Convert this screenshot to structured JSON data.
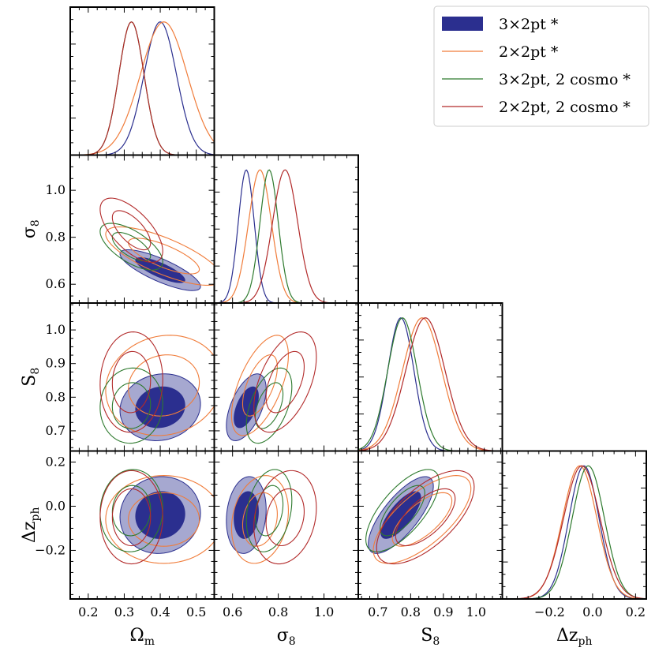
{
  "chart_data": {
    "type": "corner",
    "parameters": [
      {
        "key": "om",
        "symbol": "Ω",
        "subscript": "m",
        "range": [
          0.15,
          0.55
        ],
        "ticks": [
          0.2,
          0.3,
          0.4,
          0.5
        ],
        "tick_labels": [
          "0.2",
          "0.3",
          "0.4",
          "0.5"
        ]
      },
      {
        "key": "s8",
        "symbol": "σ",
        "subscript": "8",
        "range": [
          0.52,
          1.15
        ],
        "ticks": [
          0.6,
          0.8,
          1.0
        ],
        "tick_labels": [
          "0.6",
          "0.8",
          "1.0"
        ]
      },
      {
        "key": "S8",
        "symbol": "S",
        "subscript": "8",
        "range": [
          0.64,
          1.08
        ],
        "ticks": [
          0.7,
          0.8,
          0.9,
          1.0
        ],
        "tick_labels": [
          "0.7",
          "0.8",
          "0.9",
          "1.0"
        ]
      },
      {
        "key": "dz",
        "symbol": "Δz",
        "subscript": "ph",
        "range": [
          -0.42,
          0.25
        ],
        "ticks": [
          -0.2,
          0.0,
          0.2
        ],
        "tick_labels": [
          "−0.2",
          "0.0",
          "0.2"
        ]
      }
    ],
    "series": [
      {
        "name": "3×2pt *",
        "color": "#2b2f8f",
        "filled": true,
        "mean": [
          0.4,
          0.66,
          0.77,
          -0.04
        ],
        "sigma": [
          0.045,
          0.035,
          0.04,
          0.07
        ],
        "rho": [
          [
            1,
            -0.8,
            0.1,
            0.05
          ],
          [
            -0.8,
            1,
            0.55,
            0.15
          ],
          [
            0.1,
            0.55,
            1,
            0.75
          ],
          [
            0.05,
            0.15,
            0.75,
            1
          ]
        ]
      },
      {
        "name": "2×2pt *",
        "color": "#f07c3a",
        "filled": false,
        "mean": [
          0.41,
          0.72,
          0.835,
          -0.06
        ],
        "sigma": [
          0.065,
          0.05,
          0.06,
          0.08
        ],
        "rho": [
          [
            1,
            -0.75,
            0.1,
            0.0
          ],
          [
            -0.75,
            1,
            0.6,
            0.2
          ],
          [
            0.1,
            0.6,
            1,
            0.7
          ],
          [
            0.0,
            0.2,
            0.7,
            1
          ]
        ]
      },
      {
        "name": "3×2pt, 2 cosmo *",
        "color": "#2e7a2e",
        "filled": false,
        "mean": [
          0.32,
          0.76,
          0.775,
          -0.02
        ],
        "sigma": [
          0.035,
          0.04,
          0.045,
          0.075
        ],
        "rho": [
          [
            1,
            -0.65,
            0.05,
            0.05
          ],
          [
            -0.65,
            1,
            0.5,
            0.25
          ],
          [
            0.05,
            0.5,
            1,
            0.7
          ],
          [
            0.05,
            0.25,
            0.7,
            1
          ]
        ]
      },
      {
        "name": "2×2pt, 2 cosmo *",
        "color": "#b22a2a",
        "filled": false,
        "mean": [
          0.32,
          0.83,
          0.845,
          -0.05
        ],
        "sigma": [
          0.035,
          0.055,
          0.06,
          0.085
        ],
        "rho": [
          [
            1,
            -0.65,
            0.05,
            0.0
          ],
          [
            -0.65,
            1,
            0.5,
            0.2
          ],
          [
            0.05,
            0.5,
            1,
            0.65
          ],
          [
            0.0,
            0.2,
            0.65,
            1
          ]
        ]
      }
    ],
    "legend_position": "top-right"
  }
}
